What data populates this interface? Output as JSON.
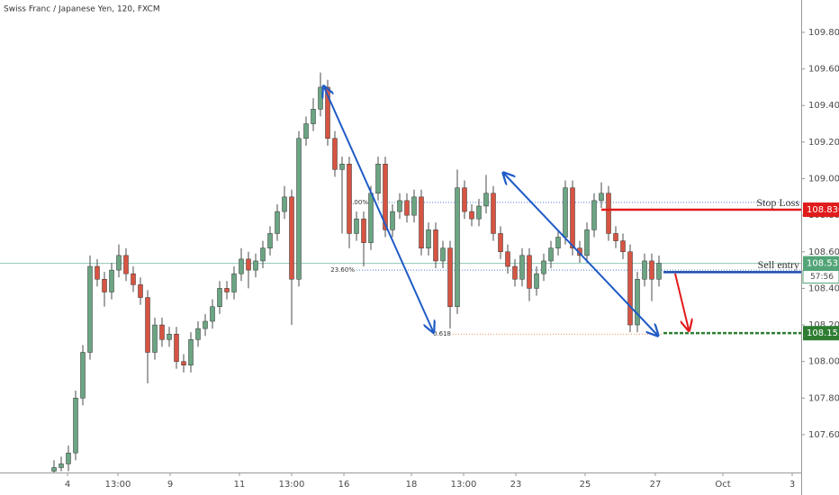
{
  "chart_data": {
    "type": "candlestick",
    "title": "Swiss Franc / Japanese Yen, 120, FXCM",
    "up_color": "#6ba583",
    "down_color": "#d75442",
    "wick_color": "#4b4b4b",
    "ohlc": [
      [
        107.4,
        107.46,
        107.38,
        107.42
      ],
      [
        107.42,
        107.48,
        107.4,
        107.44
      ],
      [
        107.44,
        107.54,
        107.4,
        107.5
      ],
      [
        107.5,
        107.84,
        107.46,
        107.8
      ],
      [
        107.8,
        108.09,
        107.76,
        108.05
      ],
      [
        108.05,
        108.58,
        108.01,
        108.52
      ],
      [
        108.52,
        108.56,
        108.41,
        108.45
      ],
      [
        108.45,
        108.49,
        108.3,
        108.38
      ],
      [
        108.38,
        108.54,
        108.34,
        108.5
      ],
      [
        108.5,
        108.64,
        108.46,
        108.58
      ],
      [
        108.58,
        108.62,
        108.44,
        108.48
      ],
      [
        108.48,
        108.52,
        108.38,
        108.42
      ],
      [
        108.42,
        108.46,
        108.31,
        108.35
      ],
      [
        108.35,
        108.39,
        107.88,
        108.05
      ],
      [
        108.05,
        108.24,
        108.01,
        108.2
      ],
      [
        108.2,
        108.24,
        108.08,
        108.12
      ],
      [
        108.12,
        108.19,
        108.08,
        108.15
      ],
      [
        108.15,
        108.19,
        107.96,
        108.0
      ],
      [
        108.0,
        108.04,
        107.94,
        107.98
      ],
      [
        107.98,
        108.16,
        107.94,
        108.12
      ],
      [
        108.12,
        108.22,
        108.08,
        108.18
      ],
      [
        108.18,
        108.26,
        108.14,
        108.22
      ],
      [
        108.22,
        108.34,
        108.18,
        108.3
      ],
      [
        108.3,
        108.44,
        108.26,
        108.4
      ],
      [
        108.4,
        108.44,
        108.34,
        108.38
      ],
      [
        108.38,
        108.52,
        108.34,
        108.48
      ],
      [
        108.48,
        108.62,
        108.44,
        108.56
      ],
      [
        108.56,
        108.6,
        108.4,
        108.5
      ],
      [
        108.5,
        108.59,
        108.46,
        108.55
      ],
      [
        108.55,
        108.66,
        108.51,
        108.62
      ],
      [
        108.62,
        108.74,
        108.58,
        108.7
      ],
      [
        108.7,
        108.86,
        108.66,
        108.82
      ],
      [
        108.82,
        108.96,
        108.78,
        108.9
      ],
      [
        108.9,
        108.94,
        108.2,
        108.45
      ],
      [
        108.45,
        109.26,
        108.41,
        109.22
      ],
      [
        109.22,
        109.34,
        109.18,
        109.3
      ],
      [
        109.3,
        109.44,
        109.26,
        109.38
      ],
      [
        109.38,
        109.58,
        109.34,
        109.5
      ],
      [
        109.5,
        109.54,
        109.18,
        109.22
      ],
      [
        109.22,
        109.26,
        109.01,
        109.05
      ],
      [
        109.05,
        109.12,
        108.7,
        109.08
      ],
      [
        109.08,
        109.12,
        108.62,
        108.7
      ],
      [
        108.7,
        108.82,
        108.66,
        108.78
      ],
      [
        108.78,
        108.82,
        108.52,
        108.65
      ],
      [
        108.65,
        108.96,
        108.61,
        108.92
      ],
      [
        108.92,
        109.12,
        108.88,
        109.08
      ],
      [
        109.08,
        109.12,
        108.68,
        108.72
      ],
      [
        108.72,
        108.86,
        108.68,
        108.82
      ],
      [
        108.82,
        108.92,
        108.78,
        108.88
      ],
      [
        108.88,
        108.92,
        108.76,
        108.8
      ],
      [
        108.8,
        108.94,
        108.76,
        108.9
      ],
      [
        108.9,
        108.94,
        108.58,
        108.62
      ],
      [
        108.62,
        108.76,
        108.58,
        108.72
      ],
      [
        108.72,
        108.76,
        108.51,
        108.55
      ],
      [
        108.55,
        108.66,
        108.51,
        108.62
      ],
      [
        108.62,
        108.66,
        108.18,
        108.3
      ],
      [
        108.3,
        109.05,
        108.26,
        108.95
      ],
      [
        108.95,
        108.99,
        108.78,
        108.82
      ],
      [
        108.82,
        108.86,
        108.74,
        108.78
      ],
      [
        108.78,
        108.89,
        108.74,
        108.85
      ],
      [
        108.85,
        109.02,
        108.81,
        108.92
      ],
      [
        108.92,
        108.96,
        108.66,
        108.7
      ],
      [
        108.7,
        108.74,
        108.56,
        108.6
      ],
      [
        108.6,
        108.64,
        108.48,
        108.52
      ],
      [
        108.52,
        108.56,
        108.41,
        108.45
      ],
      [
        108.45,
        108.62,
        108.41,
        108.58
      ],
      [
        108.58,
        108.62,
        108.33,
        108.4
      ],
      [
        108.4,
        108.52,
        108.36,
        108.48
      ],
      [
        108.48,
        108.59,
        108.44,
        108.55
      ],
      [
        108.55,
        108.66,
        108.51,
        108.62
      ],
      [
        108.62,
        108.72,
        108.58,
        108.68
      ],
      [
        108.68,
        108.99,
        108.64,
        108.95
      ],
      [
        108.95,
        108.99,
        108.58,
        108.62
      ],
      [
        108.62,
        108.66,
        108.54,
        108.58
      ],
      [
        108.58,
        108.76,
        108.54,
        108.72
      ],
      [
        108.72,
        108.92,
        108.68,
        108.88
      ],
      [
        108.88,
        108.98,
        108.84,
        108.92
      ],
      [
        108.92,
        108.96,
        108.66,
        108.7
      ],
      [
        108.7,
        108.74,
        108.62,
        108.66
      ],
      [
        108.66,
        108.7,
        108.56,
        108.6
      ],
      [
        108.6,
        108.64,
        108.16,
        108.2
      ],
      [
        108.2,
        108.49,
        108.16,
        108.45
      ],
      [
        108.45,
        108.59,
        108.41,
        108.55
      ],
      [
        108.55,
        108.59,
        108.33,
        108.45
      ],
      [
        108.45,
        108.58,
        108.41,
        108.537
      ]
    ],
    "xlim": [
      -7.5,
      103.75
    ],
    "xticks": [
      {
        "value": 1.875,
        "label": "4"
      },
      {
        "value": 8.875,
        "label": "13:00"
      },
      {
        "value": 16.125,
        "label": "9"
      },
      {
        "value": 25.75,
        "label": "11"
      },
      {
        "value": 33,
        "label": "13:00"
      },
      {
        "value": 40.25,
        "label": "16"
      },
      {
        "value": 49.625,
        "label": "18"
      },
      {
        "value": 56.875,
        "label": "13:00"
      },
      {
        "value": 64.125,
        "label": "23"
      },
      {
        "value": 73.75,
        "label": "25"
      },
      {
        "value": 83.5,
        "label": "27"
      },
      {
        "value": 92.875,
        "label": "Oct"
      },
      {
        "value": 102.5,
        "label": "3"
      }
    ],
    "ylim": [
      107.393,
      109.977
    ],
    "yticks": [
      {
        "value": 107.6,
        "label": "107.600"
      },
      {
        "value": 107.8,
        "label": "107.800"
      },
      {
        "value": 108.0,
        "label": "108.000"
      },
      {
        "value": 108.2,
        "label": "108.200"
      },
      {
        "value": 108.4,
        "label": "108.400"
      },
      {
        "value": 108.6,
        "label": "108.600"
      },
      {
        "value": 108.8,
        "label": "108.800"
      },
      {
        "value": 109.0,
        "label": "109.000"
      },
      {
        "value": 109.2,
        "label": "109.200"
      },
      {
        "value": 109.4,
        "label": "109.400"
      },
      {
        "value": 109.6,
        "label": "109.600"
      },
      {
        "value": 109.8,
        "label": "109.800"
      }
    ],
    "grid": false,
    "last_price": {
      "value": 108.537,
      "label": "108.537",
      "countdown": "57:56",
      "color": "#53a578"
    },
    "levels": [
      {
        "name": "Stop Loss",
        "value": 108.83,
        "label": "108.830",
        "color": "#e01b1b"
      },
      {
        "name": "Sell entry",
        "value": 108.489,
        "label": "108.489",
        "color": "#1b49b0"
      },
      {
        "value": 108.155,
        "label": "108.155",
        "color": "#2e7d32"
      }
    ],
    "fib_levels": [
      {
        "label": "0.00%",
        "value": 108.87
      },
      {
        "label": "23.60%",
        "value": 108.5
      },
      {
        "label": "0.618",
        "value": 108.15
      }
    ]
  }
}
